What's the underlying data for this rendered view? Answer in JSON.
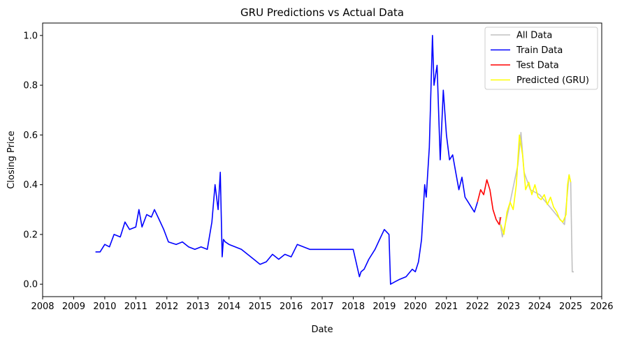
{
  "chart_data": {
    "type": "line",
    "title": "GRU Predictions vs Actual Data",
    "xlabel": "Date",
    "ylabel": "Closing Price",
    "xlim": [
      2008,
      2026
    ],
    "ylim": [
      -0.05,
      1.05
    ],
    "xticks": [
      "2008",
      "2009",
      "2010",
      "2011",
      "2012",
      "2013",
      "2014",
      "2015",
      "2016",
      "2017",
      "2018",
      "2019",
      "2020",
      "2021",
      "2022",
      "2023",
      "2024",
      "2025",
      "2026"
    ],
    "yticks": [
      "0.0",
      "0.2",
      "0.4",
      "0.6",
      "0.8",
      "1.0"
    ],
    "grid": false,
    "legend_position": "top-right",
    "series": [
      {
        "name": "All Data",
        "color": "#c0c0c0",
        "x": [
          2022.7,
          2022.8,
          2023.0,
          2023.3,
          2023.4,
          2023.5,
          2023.7,
          2024.0,
          2024.4,
          2024.8,
          2024.95,
          2025.0,
          2025.05,
          2025.1
        ],
        "y": [
          0.27,
          0.19,
          0.3,
          0.48,
          0.61,
          0.45,
          0.38,
          0.36,
          0.3,
          0.24,
          0.44,
          0.41,
          0.05,
          0.05
        ]
      },
      {
        "name": "Train Data",
        "color": "#0000ff",
        "x": [
          2009.7,
          2009.85,
          2010.0,
          2010.15,
          2010.3,
          2010.5,
          2010.65,
          2010.8,
          2011.0,
          2011.1,
          2011.2,
          2011.35,
          2011.5,
          2011.6,
          2011.75,
          2011.9,
          2012.05,
          2012.3,
          2012.5,
          2012.7,
          2012.9,
          2013.1,
          2013.3,
          2013.45,
          2013.55,
          2013.65,
          2013.72,
          2013.78,
          2013.82,
          2013.88,
          2014.0,
          2014.2,
          2014.4,
          2014.6,
          2014.8,
          2015.0,
          2015.2,
          2015.4,
          2015.6,
          2015.8,
          2016.0,
          2016.2,
          2016.4,
          2016.6,
          2016.8,
          2017.0,
          2017.5,
          2018.0,
          2018.2,
          2018.25,
          2018.35,
          2018.5,
          2018.7,
          2018.85,
          2019.0,
          2019.15,
          2019.2,
          2019.35,
          2019.5,
          2019.7,
          2019.9,
          2020.0,
          2020.1,
          2020.2,
          2020.3,
          2020.35,
          2020.45,
          2020.55,
          2020.6,
          2020.7,
          2020.8,
          2020.9,
          2021.0,
          2021.1,
          2021.2,
          2021.3,
          2021.4,
          2021.5,
          2021.6,
          2021.7,
          2021.8,
          2021.9,
          2022.0
        ],
        "y": [
          0.13,
          0.13,
          0.16,
          0.15,
          0.2,
          0.19,
          0.25,
          0.22,
          0.23,
          0.3,
          0.23,
          0.28,
          0.27,
          0.3,
          0.26,
          0.22,
          0.17,
          0.16,
          0.17,
          0.15,
          0.14,
          0.15,
          0.14,
          0.25,
          0.4,
          0.3,
          0.45,
          0.11,
          0.18,
          0.17,
          0.16,
          0.15,
          0.14,
          0.12,
          0.1,
          0.08,
          0.09,
          0.12,
          0.1,
          0.12,
          0.11,
          0.16,
          0.15,
          0.14,
          0.14,
          0.14,
          0.14,
          0.14,
          0.03,
          0.05,
          0.06,
          0.1,
          0.14,
          0.18,
          0.22,
          0.2,
          0.0,
          0.01,
          0.02,
          0.03,
          0.06,
          0.05,
          0.09,
          0.18,
          0.4,
          0.35,
          0.55,
          1.0,
          0.8,
          0.88,
          0.5,
          0.78,
          0.6,
          0.5,
          0.52,
          0.45,
          0.38,
          0.43,
          0.35,
          0.33,
          0.31,
          0.29,
          0.33
        ]
      },
      {
        "name": "Test Data",
        "color": "#ff0000",
        "x": [
          2022.0,
          2022.1,
          2022.2,
          2022.3,
          2022.4,
          2022.5,
          2022.6,
          2022.7,
          2022.75
        ],
        "y": [
          0.33,
          0.38,
          0.36,
          0.42,
          0.38,
          0.3,
          0.26,
          0.24,
          0.27
        ]
      },
      {
        "name": "Predicted (GRU)",
        "color": "#ffff00",
        "x": [
          2022.75,
          2022.85,
          2022.95,
          2023.05,
          2023.15,
          2023.25,
          2023.35,
          2023.45,
          2023.55,
          2023.65,
          2023.75,
          2023.85,
          2023.95,
          2024.05,
          2024.15,
          2024.25,
          2024.35,
          2024.45,
          2024.55,
          2024.65,
          2024.75,
          2024.85,
          2024.9,
          2024.95,
          2025.0
        ],
        "y": [
          0.24,
          0.2,
          0.29,
          0.33,
          0.3,
          0.4,
          0.6,
          0.52,
          0.38,
          0.41,
          0.36,
          0.4,
          0.35,
          0.34,
          0.36,
          0.32,
          0.35,
          0.31,
          0.29,
          0.26,
          0.25,
          0.28,
          0.4,
          0.44,
          0.41
        ]
      }
    ]
  }
}
